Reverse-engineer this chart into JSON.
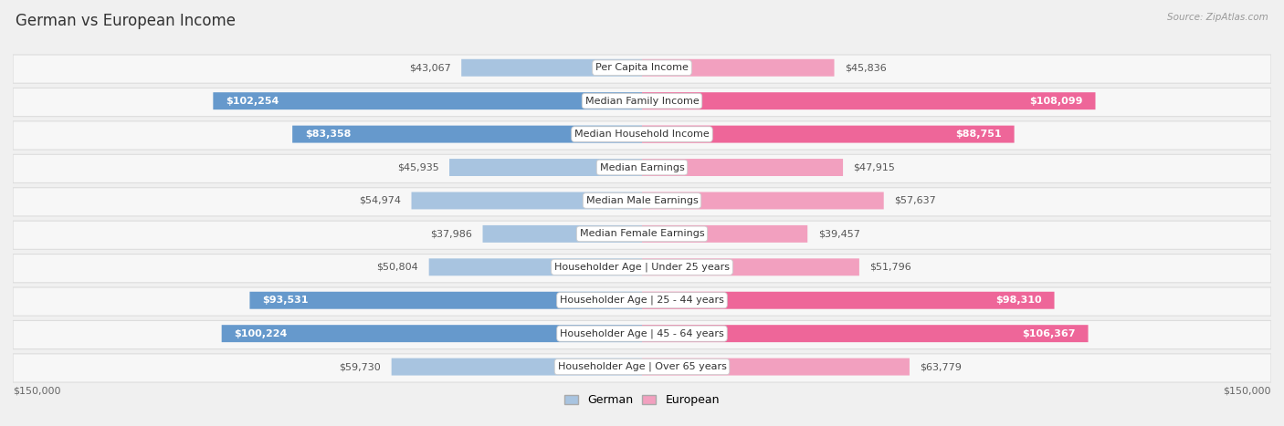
{
  "title": "German vs European Income",
  "source": "Source: ZipAtlas.com",
  "categories": [
    "Per Capita Income",
    "Median Family Income",
    "Median Household Income",
    "Median Earnings",
    "Median Male Earnings",
    "Median Female Earnings",
    "Householder Age | Under 25 years",
    "Householder Age | 25 - 44 years",
    "Householder Age | 45 - 64 years",
    "Householder Age | Over 65 years"
  ],
  "german_values": [
    43067,
    102254,
    83358,
    45935,
    54974,
    37986,
    50804,
    93531,
    100224,
    59730
  ],
  "european_values": [
    45836,
    108099,
    88751,
    47915,
    57637,
    39457,
    51796,
    98310,
    106367,
    63779
  ],
  "german_labels": [
    "$43,067",
    "$102,254",
    "$83,358",
    "$45,935",
    "$54,974",
    "$37,986",
    "$50,804",
    "$93,531",
    "$100,224",
    "$59,730"
  ],
  "european_labels": [
    "$45,836",
    "$108,099",
    "$88,751",
    "$47,915",
    "$57,637",
    "$39,457",
    "$51,796",
    "$98,310",
    "$106,367",
    "$63,779"
  ],
  "max_value": 150000,
  "german_color_light": "#a8c4e0",
  "german_color_dark": "#6699cc",
  "european_color_light": "#f2a0bf",
  "european_color_dark": "#ee6699",
  "background_color": "#f0f0f0",
  "row_bg_color": "#f7f7f7",
  "label_threshold": 75000,
  "title_fontsize": 12,
  "label_fontsize": 8,
  "category_fontsize": 8
}
